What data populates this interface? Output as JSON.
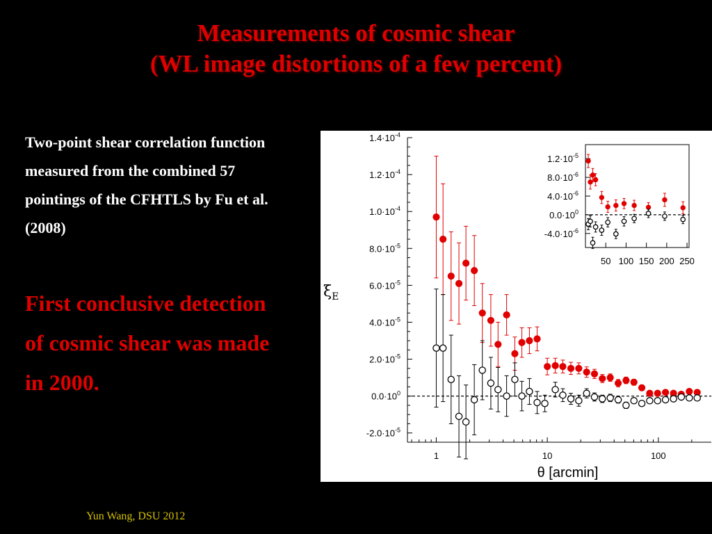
{
  "slide": {
    "title_line1": "Measurements of cosmic shear",
    "title_line2": "(WL image distortions of a few percent)",
    "description": "Two-point shear correlation function measured from the combined 57 pointings of the CFHTLS by Fu et al. (2008)",
    "highlight": "First conclusive detection of cosmic shear was made in 2000.",
    "footer": "Yun Wang, DSU 2012"
  },
  "chart_data": [
    {
      "type": "scatter",
      "panel": "main",
      "x_scale": "log",
      "xlim": [
        0.55,
        300
      ],
      "ylim": [
        -2.5e-05,
        0.00014
      ],
      "xlabel": "θ [arcmin]",
      "ylabel": "ξ_E",
      "x_ticks": [
        1,
        10,
        100
      ],
      "x_tick_labels": [
        "1",
        "10",
        "100"
      ],
      "y_ticks": [
        -2e-05,
        0,
        2e-05,
        4e-05,
        6e-05,
        8e-05,
        0.0001,
        0.00012,
        0.00014
      ],
      "y_tick_labels": [
        [
          "-2.0·10",
          "-5"
        ],
        [
          "0.0·10",
          "0"
        ],
        [
          "2.0·10",
          "-5"
        ],
        [
          "4.0·10",
          "-5"
        ],
        [
          "6.0·10",
          "-5"
        ],
        [
          "8.0·10",
          "-5"
        ],
        [
          "1.0·10",
          "-4"
        ],
        [
          "1.2·10",
          "-4"
        ],
        [
          "1.4·10",
          "-4"
        ]
      ],
      "reference_line": 0,
      "series": [
        {
          "marker": "filled-circle",
          "color": "#e00000",
          "x": [
            1.0,
            1.15,
            1.36,
            1.6,
            1.85,
            2.2,
            2.6,
            3.1,
            3.6,
            4.3,
            5.1,
            5.9,
            6.9,
            8.1,
            10,
            11.8,
            13.8,
            16.3,
            19.2,
            22.6,
            26.6,
            31.3,
            36.9,
            43.5,
            51.2,
            60.3,
            71,
            83.6,
            98.5,
            116,
            137,
            161,
            190,
            224
          ],
          "y": [
            9.7e-05,
            8.5e-05,
            6.5e-05,
            6.1e-05,
            7.2e-05,
            6.8e-05,
            4.5e-05,
            4.1e-05,
            2.8e-05,
            4.4e-05,
            2.3e-05,
            2.9e-05,
            3e-05,
            3.1e-05,
            1.6e-05,
            1.65e-05,
            1.6e-05,
            1.5e-05,
            1.5e-05,
            1.3e-05,
            1.2e-05,
            9.5e-06,
            1e-05,
            7e-06,
            8.5e-06,
            7.5e-06,
            4.5e-06,
            1.5e-06,
            1.5e-06,
            2e-06,
            1.5e-06,
            1e-06,
            2.5e-06,
            2e-06
          ],
          "err": [
            3.3e-05,
            3e-05,
            2.4e-05,
            2.2e-05,
            2e-05,
            1.9e-05,
            1.6e-05,
            1.4e-05,
            1.2e-05,
            1.1e-05,
            9e-06,
            8e-06,
            7e-06,
            6.5e-06,
            4.5e-06,
            4e-06,
            3.5e-06,
            3.3e-06,
            3e-06,
            2.8e-06,
            2.5e-06,
            2.2e-06,
            2e-06,
            2e-06,
            1.8e-06,
            1.6e-06,
            1.5e-06,
            1.4e-06,
            1.3e-06,
            1.2e-06,
            1.2e-06,
            1.1e-06,
            1e-06,
            1e-06
          ]
        },
        {
          "marker": "open-circle",
          "color": "#000000",
          "x": [
            1.0,
            1.15,
            1.36,
            1.6,
            1.85,
            2.2,
            2.6,
            3.1,
            3.6,
            4.3,
            5.1,
            5.9,
            6.9,
            8.1,
            9.5,
            11.8,
            13.8,
            16.3,
            19.2,
            22.6,
            26.6,
            31.3,
            36.9,
            43.5,
            51.2,
            60.3,
            71,
            83.6,
            98.5,
            116,
            137,
            161,
            190,
            224
          ],
          "y": [
            2.6e-05,
            2.6e-05,
            9e-06,
            -1.1e-05,
            -1.4e-05,
            -2e-06,
            1.4e-05,
            7e-06,
            3.5e-06,
            0.0,
            9e-06,
            -0.0,
            2.5e-06,
            -3.5e-06,
            -4e-06,
            3.5e-06,
            5e-07,
            -1.5e-06,
            -2.5e-06,
            1.5e-06,
            -5e-07,
            -1.5e-06,
            -1e-06,
            -2e-06,
            -5e-06,
            -2.5e-06,
            -4e-06,
            -2.5e-06,
            -2.5e-06,
            -2e-06,
            -1.5e-06,
            -5e-07,
            -1e-06,
            -1e-06
          ],
          "err": [
            3.2e-05,
            2.9e-05,
            2.4e-05,
            2.2e-05,
            2e-05,
            1.9e-05,
            1.6e-05,
            1.4e-05,
            1.2e-05,
            1.1e-05,
            9e-06,
            8e-06,
            7e-06,
            6e-06,
            4.5e-06,
            4e-06,
            3.5e-06,
            3e-06,
            3e-06,
            2.5e-06,
            2.2e-06,
            2e-06,
            2e-06,
            1.8e-06,
            1.7e-06,
            1.5e-06,
            1.4e-06,
            1.3e-06,
            1.2e-06,
            1.2e-06,
            1.1e-06,
            1e-06,
            1e-06,
            1e-06
          ]
        }
      ]
    },
    {
      "type": "scatter",
      "panel": "inset",
      "x_scale": "linear",
      "xlim": [
        0,
        255
      ],
      "ylim": [
        -7e-06,
        1.5e-05
      ],
      "x_ticks": [
        50,
        100,
        150,
        200,
        250
      ],
      "x_tick_labels": [
        "50",
        "100",
        "150",
        "200",
        "250"
      ],
      "y_ticks": [
        -4e-06,
        0,
        4e-06,
        8e-06,
        1.2e-05
      ],
      "y_tick_labels": [
        [
          "-4.0·10",
          "-6"
        ],
        [
          "0.0·10",
          "0"
        ],
        [
          "4.0·10",
          "-6"
        ],
        [
          "8.0·10",
          "-6"
        ],
        [
          "1.2·10",
          "-5"
        ]
      ],
      "reference_line": 0,
      "series": [
        {
          "marker": "filled-circle",
          "color": "#e00000",
          "x": [
            7,
            12,
            18,
            25,
            40,
            55,
            75,
            95,
            120,
            155,
            195,
            240
          ],
          "y": [
            1.15e-05,
            7e-06,
            8.5e-06,
            7.5e-06,
            3.7e-06,
            1.7e-06,
            2e-06,
            2.4e-06,
            2e-06,
            1.6e-06,
            3.2e-06,
            1.5e-06
          ],
          "err": [
            1.4e-06,
            1.5e-06,
            1.4e-06,
            1.3e-06,
            1.3e-06,
            1.2e-06,
            1.2e-06,
            1.1e-06,
            1.1e-06,
            1e-06,
            1.4e-06,
            1.3e-06
          ]
        },
        {
          "marker": "open-circle",
          "color": "#000000",
          "x": [
            7,
            12,
            18,
            25,
            40,
            55,
            75,
            95,
            120,
            155,
            195,
            240
          ],
          "y": [
            -2e-06,
            -1.4e-06,
            -6e-06,
            -2.6e-06,
            -3.3e-06,
            -1.6e-06,
            -4.1e-06,
            -1.4e-06,
            -8e-07,
            3e-07,
            -3e-07,
            -1e-06
          ],
          "err": [
            1.2e-06,
            1.2e-06,
            1.2e-06,
            1.1e-06,
            1.1e-06,
            1e-06,
            1e-06,
            1e-06,
            9e-07,
            9e-07,
            9e-07,
            9e-07
          ]
        }
      ]
    }
  ]
}
